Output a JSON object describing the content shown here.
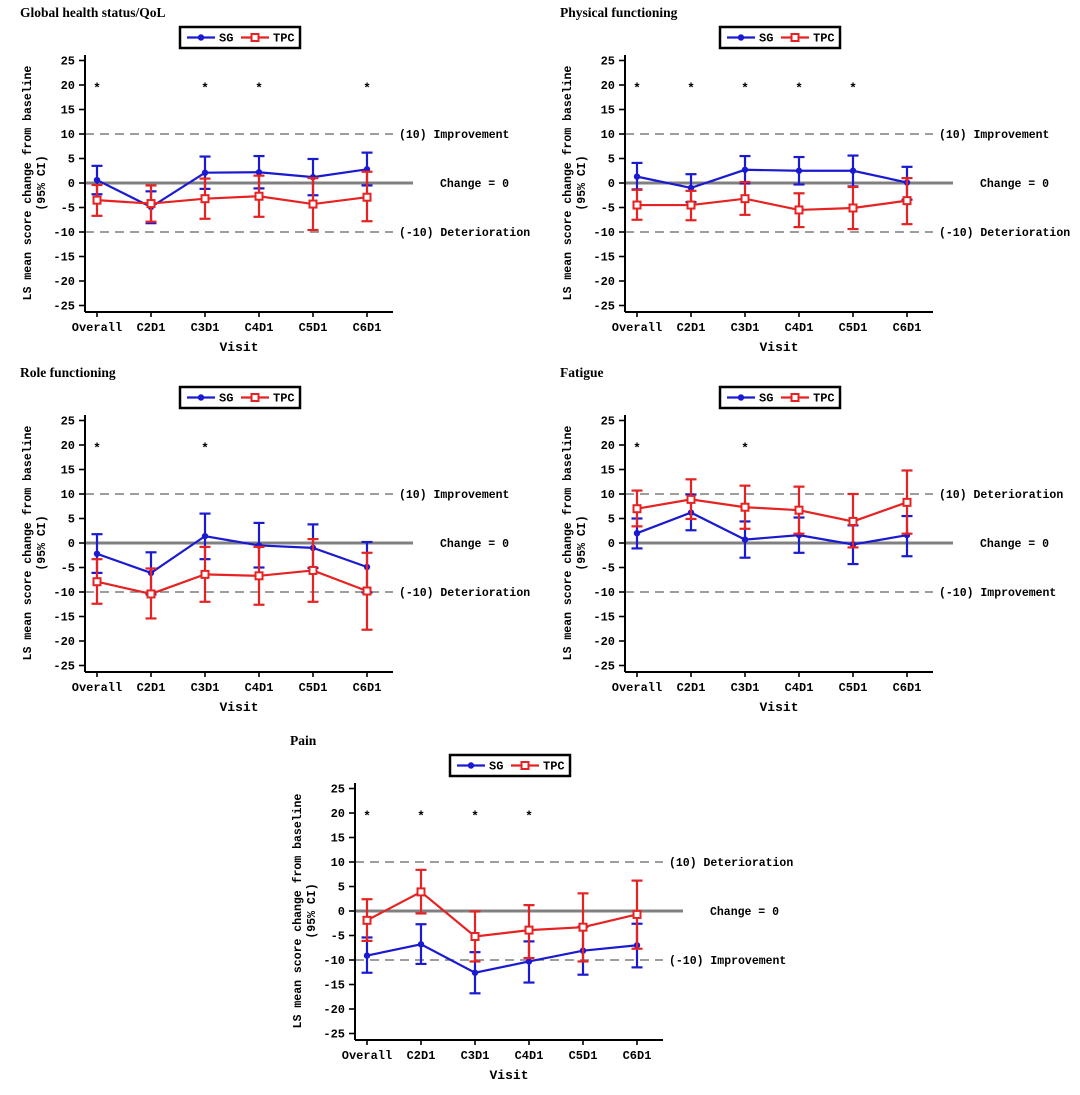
{
  "figure": {
    "background": "#ffffff",
    "significance_marker": "*",
    "axis": {
      "xlabel": "Visit",
      "ylabel_line1": "LS mean score change from baseline",
      "ylabel_line2": "(95% CI)",
      "ylim": [
        -25,
        25
      ],
      "yticks": [
        25,
        20,
        15,
        10,
        5,
        0,
        -5,
        -10,
        -15,
        -20,
        -25
      ],
      "categories": [
        "Overall",
        "C2D1",
        "C3D1",
        "C4D1",
        "C5D1",
        "C6D1"
      ]
    },
    "legend": {
      "items": [
        {
          "label": "SG",
          "color": "#1a1ad1",
          "marker": "filled-circle"
        },
        {
          "label": "TPC",
          "color": "#e62222",
          "marker": "open-square"
        }
      ]
    },
    "colors": {
      "sg": "#1a1ad1",
      "tpc": "#e62222",
      "zero_line": "#808080",
      "ref_line": "#7d7d7d",
      "text": "#000000"
    }
  },
  "chart_data": [
    {
      "type": "line",
      "title": "Global health status/QoL",
      "categories": [
        "Overall",
        "C2D1",
        "C3D1",
        "C4D1",
        "C5D1",
        "C6D1"
      ],
      "xlabel": "Visit",
      "ylabel": "LS mean score change from baseline (95% CI)",
      "ylim": [
        -25,
        25
      ],
      "grid": false,
      "legend_position": "top-center",
      "ref_lines": {
        "upper": {
          "value": 10,
          "label": "(10) Improvement"
        },
        "zero": {
          "value": 0,
          "label": "Change = 0"
        },
        "lower": {
          "value": -10,
          "label": "(-10) Deterioration"
        }
      },
      "asterisk_y": 20,
      "asterisk_categories": [
        "Overall",
        "C3D1",
        "C4D1",
        "C6D1"
      ],
      "series": [
        {
          "name": "SG",
          "color": "#1a1ad1",
          "marker": "filled-circle",
          "values": [
            0.6,
            -4.9,
            2.1,
            2.2,
            1.2,
            2.8
          ],
          "ci_low": [
            -2.3,
            -8.2,
            -1.2,
            -1.1,
            -2.5,
            -0.5
          ],
          "ci_high": [
            3.5,
            -1.7,
            5.4,
            5.5,
            4.9,
            6.2
          ]
        },
        {
          "name": "TPC",
          "color": "#e62222",
          "marker": "open-square",
          "values": [
            -3.5,
            -4.2,
            -3.2,
            -2.7,
            -4.3,
            -2.9
          ],
          "ci_low": [
            -6.7,
            -7.9,
            -7.3,
            -6.9,
            -9.6,
            -7.8
          ],
          "ci_high": [
            -0.4,
            -0.5,
            0.9,
            1.5,
            1.0,
            2.3
          ]
        }
      ]
    },
    {
      "type": "line",
      "title": "Physical functioning",
      "categories": [
        "Overall",
        "C2D1",
        "C3D1",
        "C4D1",
        "C5D1",
        "C6D1"
      ],
      "xlabel": "Visit",
      "ylabel": "LS mean score change from baseline (95% CI)",
      "ylim": [
        -25,
        25
      ],
      "grid": false,
      "legend_position": "top-center",
      "ref_lines": {
        "upper": {
          "value": 10,
          "label": "(10) Improvement"
        },
        "zero": {
          "value": 0,
          "label": "Change = 0"
        },
        "lower": {
          "value": -10,
          "label": "(-10) Deterioration"
        }
      },
      "asterisk_y": 20,
      "asterisk_categories": [
        "Overall",
        "C2D1",
        "C3D1",
        "C4D1",
        "C5D1"
      ],
      "series": [
        {
          "name": "SG",
          "color": "#1a1ad1",
          "marker": "filled-circle",
          "values": [
            1.3,
            -1.0,
            2.7,
            2.5,
            2.5,
            0.1
          ],
          "ci_low": [
            -1.3,
            -3.9,
            -0.1,
            -0.3,
            -0.7,
            -3.4
          ],
          "ci_high": [
            4.1,
            1.8,
            5.5,
            5.3,
            5.6,
            3.3
          ]
        },
        {
          "name": "TPC",
          "color": "#e62222",
          "marker": "open-square",
          "values": [
            -4.5,
            -4.5,
            -3.2,
            -5.5,
            -5.1,
            -3.6
          ],
          "ci_low": [
            -7.5,
            -7.6,
            -6.5,
            -9.0,
            -9.4,
            -8.4
          ],
          "ci_high": [
            -1.4,
            -1.6,
            0.2,
            -2.1,
            -0.8,
            1.0
          ]
        }
      ]
    },
    {
      "type": "line",
      "title": "Role functioning",
      "categories": [
        "Overall",
        "C2D1",
        "C3D1",
        "C4D1",
        "C5D1",
        "C6D1"
      ],
      "xlabel": "Visit",
      "ylabel": "LS mean score change from baseline (95% CI)",
      "ylim": [
        -25,
        25
      ],
      "grid": false,
      "legend_position": "top-center",
      "ref_lines": {
        "upper": {
          "value": 10,
          "label": "(10) Improvement"
        },
        "zero": {
          "value": 0,
          "label": "Change = 0"
        },
        "lower": {
          "value": -10,
          "label": "(-10) Deterioration"
        }
      },
      "asterisk_y": 20,
      "asterisk_categories": [
        "Overall",
        "C3D1"
      ],
      "series": [
        {
          "name": "SG",
          "color": "#1a1ad1",
          "marker": "filled-circle",
          "values": [
            -2.2,
            -6.1,
            1.4,
            -0.5,
            -1.0,
            -4.9
          ],
          "ci_low": [
            -6.1,
            -10.5,
            -3.3,
            -5.0,
            -5.1,
            -10.1
          ],
          "ci_high": [
            1.8,
            -1.9,
            6.0,
            4.1,
            3.8,
            0.2
          ]
        },
        {
          "name": "TPC",
          "color": "#e62222",
          "marker": "open-square",
          "values": [
            -7.9,
            -10.4,
            -6.4,
            -6.7,
            -5.6,
            -9.8
          ],
          "ci_low": [
            -12.4,
            -15.4,
            -12.0,
            -12.6,
            -12.0,
            -17.7
          ],
          "ci_high": [
            -3.3,
            -5.2,
            -0.8,
            -0.8,
            0.8,
            -2.0
          ]
        }
      ]
    },
    {
      "type": "line",
      "title": "Fatigue",
      "categories": [
        "Overall",
        "C2D1",
        "C3D1",
        "C4D1",
        "C5D1",
        "C6D1"
      ],
      "xlabel": "Visit",
      "ylabel": "LS mean score change from baseline (95% CI)",
      "ylim": [
        -25,
        25
      ],
      "grid": false,
      "legend_position": "top-center",
      "ref_lines": {
        "upper": {
          "value": 10,
          "label": "(10) Deterioration"
        },
        "zero": {
          "value": 0,
          "label": "Change = 0"
        },
        "lower": {
          "value": -10,
          "label": "(-10) Improvement"
        }
      },
      "asterisk_y": 20,
      "asterisk_categories": [
        "Overall",
        "C3D1"
      ],
      "series": [
        {
          "name": "SG",
          "color": "#1a1ad1",
          "marker": "filled-circle",
          "values": [
            2.0,
            6.2,
            0.7,
            1.6,
            -0.3,
            1.6
          ],
          "ci_low": [
            -1.1,
            2.6,
            -3.0,
            -2.0,
            -4.3,
            -2.7
          ],
          "ci_high": [
            5.0,
            9.9,
            4.4,
            5.2,
            3.6,
            5.5
          ]
        },
        {
          "name": "TPC",
          "color": "#e62222",
          "marker": "open-square",
          "values": [
            7.0,
            8.9,
            7.3,
            6.7,
            4.4,
            8.3
          ],
          "ci_low": [
            3.4,
            4.9,
            2.9,
            1.9,
            -0.9,
            1.9
          ],
          "ci_high": [
            10.7,
            13.0,
            11.7,
            11.5,
            10.0,
            14.8
          ]
        }
      ]
    },
    {
      "type": "line",
      "title": "Pain",
      "categories": [
        "Overall",
        "C2D1",
        "C3D1",
        "C4D1",
        "C5D1",
        "C6D1"
      ],
      "xlabel": "Visit",
      "ylabel": "LS mean score change from baseline (95% CI)",
      "ylim": [
        -25,
        25
      ],
      "grid": false,
      "legend_position": "top-center",
      "ref_lines": {
        "upper": {
          "value": 10,
          "label": "(10) Deterioration"
        },
        "zero": {
          "value": 0,
          "label": "Change = 0"
        },
        "lower": {
          "value": -10,
          "label": "(-10) Improvement"
        }
      },
      "asterisk_y": 20,
      "asterisk_categories": [
        "Overall",
        "C2D1",
        "C3D1",
        "C4D1"
      ],
      "series": [
        {
          "name": "SG",
          "color": "#1a1ad1",
          "marker": "filled-circle",
          "values": [
            -9.1,
            -6.8,
            -12.6,
            -10.3,
            -8.1,
            -7.0
          ],
          "ci_low": [
            -12.6,
            -10.8,
            -16.8,
            -14.6,
            -13.0,
            -11.5
          ],
          "ci_high": [
            -5.4,
            -2.7,
            -8.4,
            -6.2,
            -3.2,
            -2.6
          ]
        },
        {
          "name": "TPC",
          "color": "#e62222",
          "marker": "open-square",
          "values": [
            -1.9,
            3.9,
            -5.2,
            -3.9,
            -3.3,
            -0.7
          ],
          "ci_low": [
            -6.1,
            -0.5,
            -10.3,
            -9.6,
            -10.3,
            -7.7
          ],
          "ci_high": [
            2.4,
            8.4,
            -0.1,
            1.2,
            3.6,
            6.2
          ]
        }
      ]
    }
  ]
}
